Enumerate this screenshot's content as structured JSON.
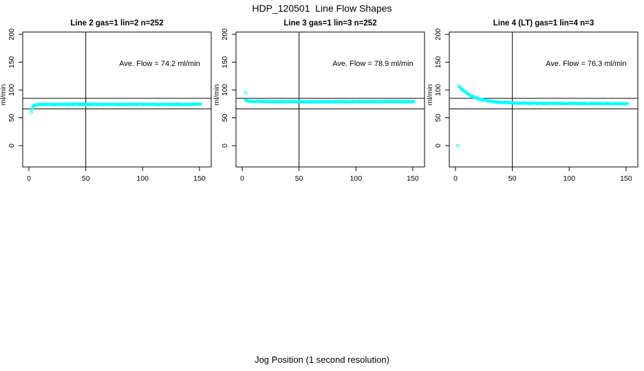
{
  "page": {
    "title": "HDP_120501  Line Flow Shapes",
    "xlabel": "Jog Position (1 second resolution)"
  },
  "colors": {
    "points": "#00FFFF",
    "axis": "#000000",
    "background": "#FFFFFF"
  },
  "chart_data": [
    {
      "type": "scatter",
      "title": "Line 2 gas=1 lin=2 n=252",
      "annotation": "Ave. Flow =  74.2  ml/min",
      "ave_flow_ml_min": 74.2,
      "n": 252,
      "ylabel": "ml/min",
      "x_ticks": [
        0,
        50,
        100,
        150
      ],
      "y_ticks": [
        0,
        50,
        100,
        150,
        200
      ],
      "xlim": [
        0,
        155
      ],
      "ylim": [
        0,
        200
      ],
      "grid": false,
      "hlines": [
        85,
        66
      ],
      "vline_x": 50,
      "band_x_range": [
        2.6,
        151
      ],
      "band_anchors": [
        [
          2.6,
          65
        ],
        [
          3.2,
          68.5
        ],
        [
          4,
          71
        ],
        [
          5,
          72.4
        ],
        [
          6.5,
          73.2
        ],
        [
          8,
          73.7
        ],
        [
          10,
          74
        ],
        [
          15,
          74.2
        ],
        [
          151,
          74.3
        ]
      ],
      "outliers": [
        [
          2,
          59.5
        ]
      ],
      "jitter": 1.2
    },
    {
      "type": "scatter",
      "title": "Line 3 gas=1 lin=3 n=252",
      "annotation": "Ave. Flow =  78.9  ml/min",
      "ave_flow_ml_min": 78.9,
      "n": 252,
      "ylabel": "ml/min",
      "x_ticks": [
        0,
        50,
        100,
        150
      ],
      "y_ticks": [
        0,
        50,
        100,
        150,
        200
      ],
      "xlim": [
        0,
        155
      ],
      "ylim": [
        0,
        200
      ],
      "grid": false,
      "hlines": [
        85,
        66
      ],
      "vline_x": 50,
      "band_x_range": [
        3,
        151
      ],
      "band_anchors": [
        [
          3,
          81.5
        ],
        [
          4,
          80.6
        ],
        [
          6,
          80
        ],
        [
          9,
          79.6
        ],
        [
          15,
          79.3
        ],
        [
          30,
          79
        ],
        [
          151,
          79
        ]
      ],
      "outliers": [
        [
          3,
          95
        ]
      ],
      "jitter": 1.1
    },
    {
      "type": "scatter",
      "title": "Line 4 (LT) gas=1 lin=4 n=3",
      "annotation": "Ave. Flow =  76.3  ml/min",
      "ave_flow_ml_min": 76.3,
      "n": 3,
      "ylabel": "ml/min",
      "x_ticks": [
        0,
        50,
        100,
        150
      ],
      "y_ticks": [
        0,
        50,
        100,
        150,
        200
      ],
      "xlim": [
        0,
        155
      ],
      "ylim": [
        0,
        200
      ],
      "grid": false,
      "hlines": [
        85,
        66
      ],
      "vline_x": 50,
      "band_x_range": [
        3,
        151
      ],
      "band_anchors": [
        [
          3,
          106.5
        ],
        [
          4.5,
          104
        ],
        [
          6,
          101
        ],
        [
          8,
          97.5
        ],
        [
          10,
          94.5
        ],
        [
          13,
          90.5
        ],
        [
          16,
          87.5
        ],
        [
          20,
          84.5
        ],
        [
          24,
          82.3
        ],
        [
          28,
          80.8
        ],
        [
          33,
          79.3
        ],
        [
          38,
          78.2
        ],
        [
          45,
          77.3
        ],
        [
          55,
          76.6
        ],
        [
          70,
          76.1
        ],
        [
          100,
          75.8
        ],
        [
          151,
          75.5
        ]
      ],
      "outliers": [
        [
          2,
          0
        ]
      ],
      "jitter": 1.1
    }
  ]
}
